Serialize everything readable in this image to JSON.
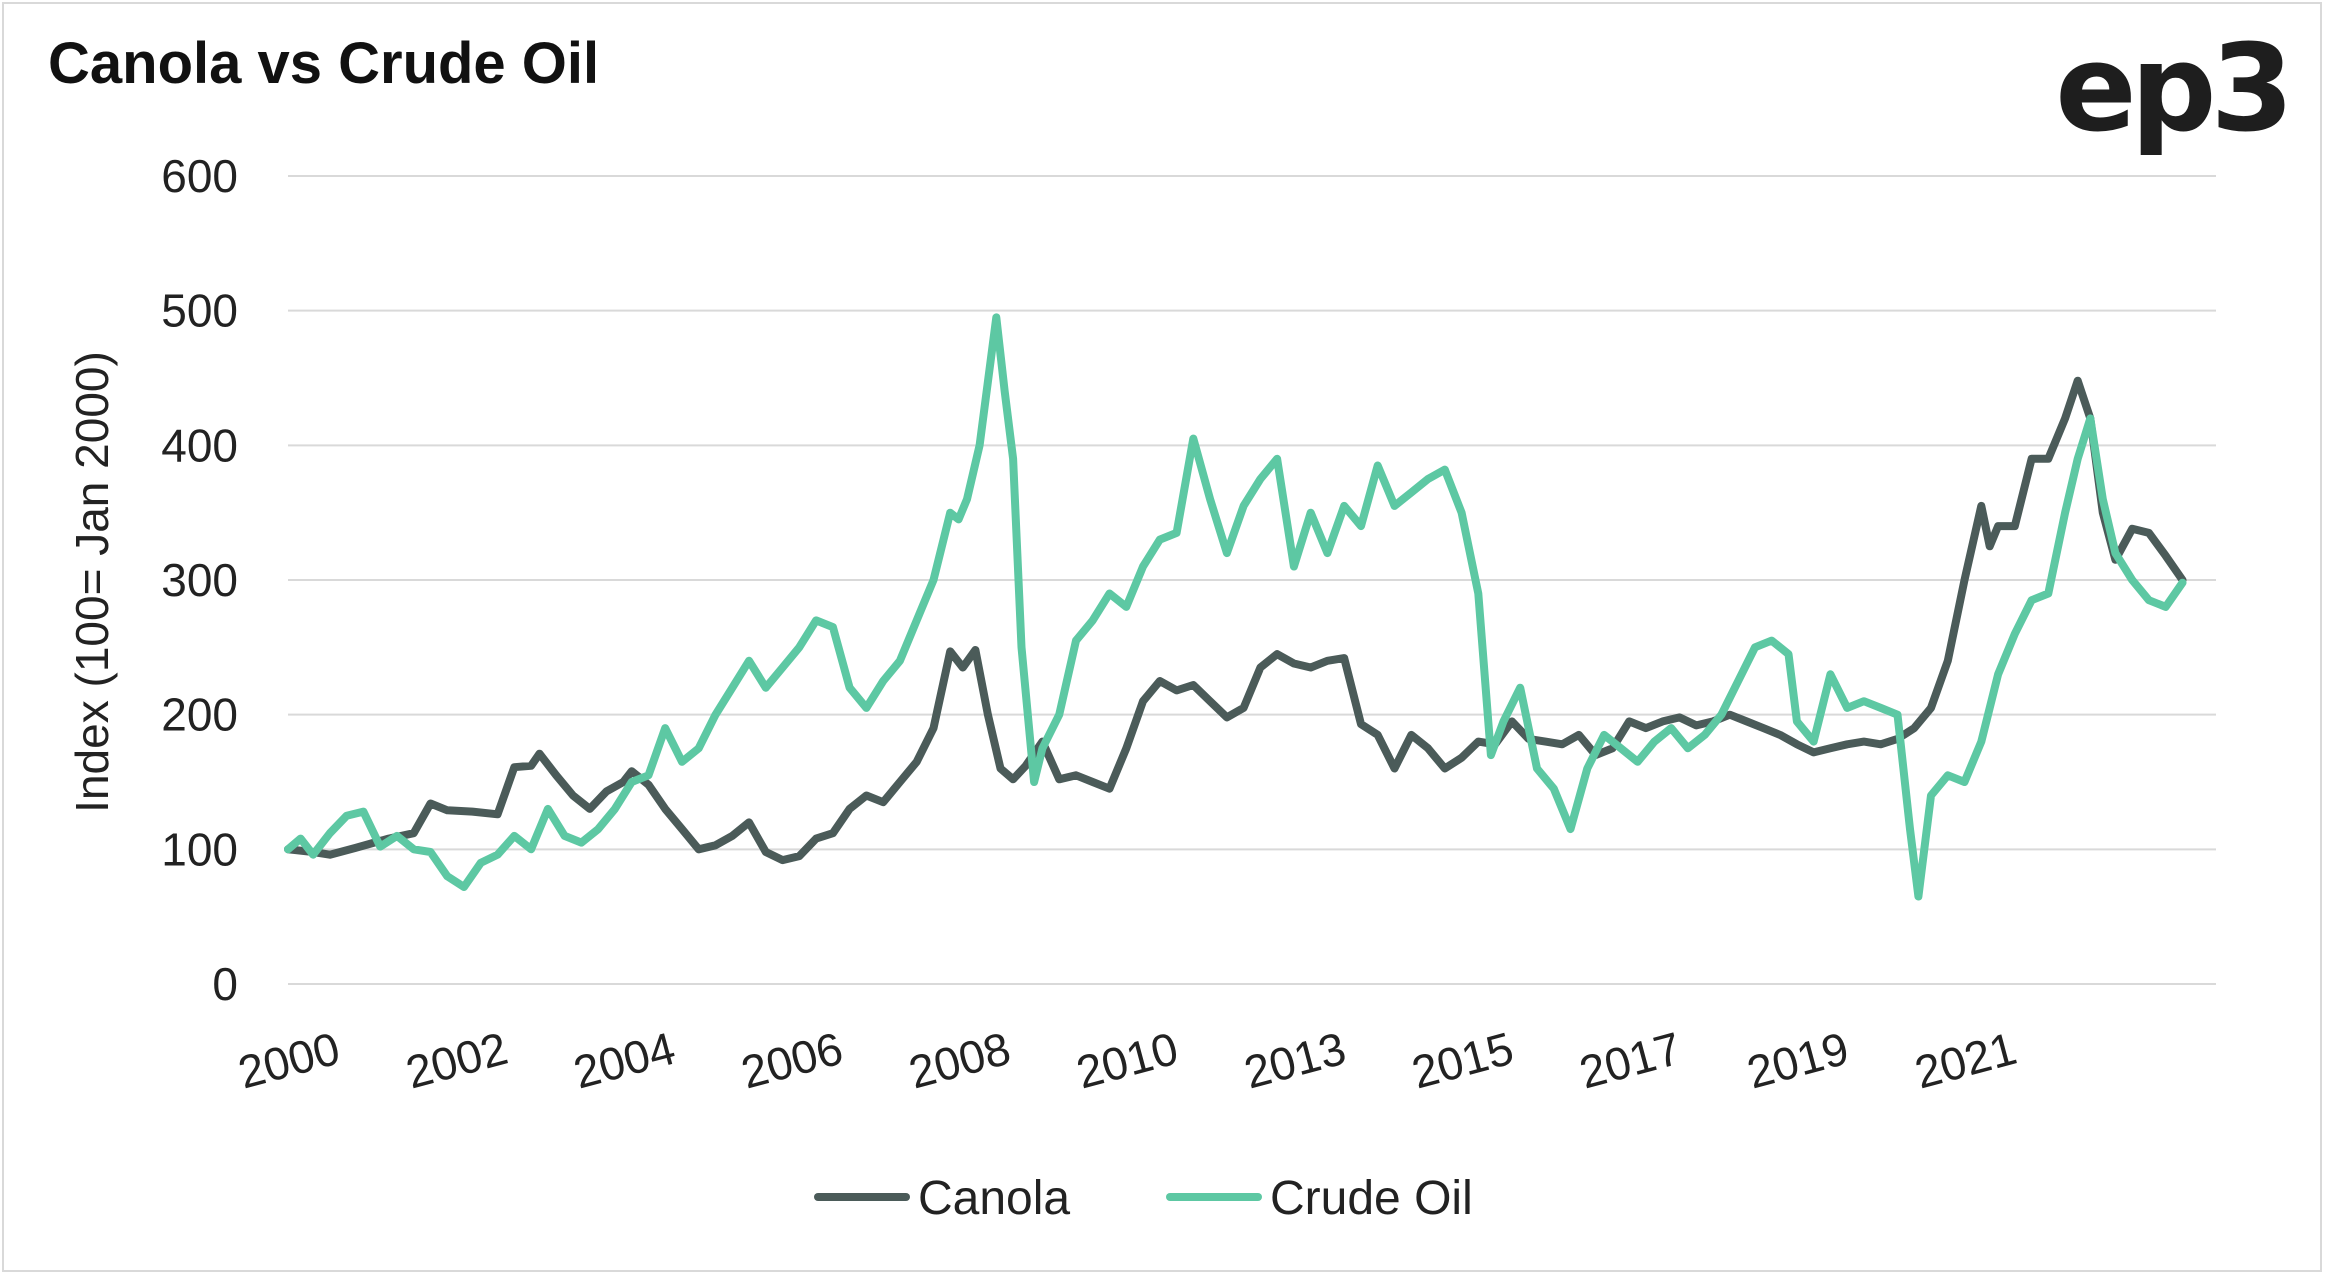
{
  "title": "Canola vs Crude Oil",
  "logo": "ep3",
  "chart_data": {
    "type": "line",
    "title": "Canola vs Crude Oil",
    "xlabel": "",
    "ylabel": "Index (100= Jan 2000)",
    "ylim": [
      0,
      600
    ],
    "yticks": [
      0,
      100,
      200,
      300,
      400,
      500,
      600
    ],
    "xlim": [
      2000.0,
      2023.0
    ],
    "xticks": [
      {
        "label": "2000",
        "x": 2000.0
      },
      {
        "label": "2002",
        "x": 2002.0
      },
      {
        "label": "2004",
        "x": 2004.0
      },
      {
        "label": "2006",
        "x": 2006.0
      },
      {
        "label": "2008",
        "x": 2008.0
      },
      {
        "label": "2010",
        "x": 2010.0
      },
      {
        "label": "2013",
        "x": 2012.0
      },
      {
        "label": "2015",
        "x": 2014.0
      },
      {
        "label": "2017",
        "x": 2016.0
      },
      {
        "label": "2019",
        "x": 2018.0
      },
      {
        "label": "2021",
        "x": 2020.0
      }
    ],
    "grid": true,
    "legend_position": "bottom",
    "series": [
      {
        "name": "Canola",
        "color": "#4b5b59",
        "points": [
          [
            2000.0,
            100
          ],
          [
            2000.3,
            98
          ],
          [
            2000.5,
            96
          ],
          [
            2000.8,
            101
          ],
          [
            2001.2,
            108
          ],
          [
            2001.5,
            112
          ],
          [
            2001.7,
            134
          ],
          [
            2001.9,
            129
          ],
          [
            2002.2,
            128
          ],
          [
            2002.5,
            126
          ],
          [
            2002.7,
            161
          ],
          [
            2002.9,
            162
          ],
          [
            2003.0,
            171
          ],
          [
            2003.2,
            155
          ],
          [
            2003.4,
            140
          ],
          [
            2003.6,
            130
          ],
          [
            2003.8,
            143
          ],
          [
            2004.0,
            150
          ],
          [
            2004.1,
            158
          ],
          [
            2004.3,
            148
          ],
          [
            2004.5,
            130
          ],
          [
            2004.7,
            115
          ],
          [
            2004.9,
            100
          ],
          [
            2005.1,
            103
          ],
          [
            2005.3,
            110
          ],
          [
            2005.5,
            120
          ],
          [
            2005.7,
            98
          ],
          [
            2005.9,
            92
          ],
          [
            2006.1,
            95
          ],
          [
            2006.3,
            108
          ],
          [
            2006.5,
            112
          ],
          [
            2006.7,
            130
          ],
          [
            2006.9,
            140
          ],
          [
            2007.1,
            135
          ],
          [
            2007.3,
            150
          ],
          [
            2007.5,
            165
          ],
          [
            2007.7,
            190
          ],
          [
            2007.9,
            247
          ],
          [
            2008.05,
            235
          ],
          [
            2008.2,
            248
          ],
          [
            2008.35,
            200
          ],
          [
            2008.5,
            160
          ],
          [
            2008.65,
            152
          ],
          [
            2008.8,
            162
          ],
          [
            2009.0,
            180
          ],
          [
            2009.2,
            152
          ],
          [
            2009.4,
            155
          ],
          [
            2009.6,
            150
          ],
          [
            2009.8,
            145
          ],
          [
            2010.0,
            175
          ],
          [
            2010.2,
            210
          ],
          [
            2010.4,
            225
          ],
          [
            2010.6,
            218
          ],
          [
            2010.8,
            222
          ],
          [
            2011.0,
            210
          ],
          [
            2011.2,
            198
          ],
          [
            2011.4,
            205
          ],
          [
            2011.6,
            235
          ],
          [
            2011.8,
            245
          ],
          [
            2012.0,
            238
          ],
          [
            2012.2,
            235
          ],
          [
            2012.4,
            240
          ],
          [
            2012.6,
            242
          ],
          [
            2012.8,
            193
          ],
          [
            2013.0,
            185
          ],
          [
            2013.2,
            160
          ],
          [
            2013.4,
            185
          ],
          [
            2013.6,
            175
          ],
          [
            2013.8,
            160
          ],
          [
            2014.0,
            168
          ],
          [
            2014.2,
            180
          ],
          [
            2014.4,
            178
          ],
          [
            2014.6,
            195
          ],
          [
            2014.8,
            182
          ],
          [
            2015.0,
            180
          ],
          [
            2015.2,
            178
          ],
          [
            2015.4,
            185
          ],
          [
            2015.6,
            170
          ],
          [
            2015.8,
            175
          ],
          [
            2016.0,
            195
          ],
          [
            2016.2,
            190
          ],
          [
            2016.4,
            195
          ],
          [
            2016.6,
            198
          ],
          [
            2016.8,
            192
          ],
          [
            2017.0,
            195
          ],
          [
            2017.2,
            200
          ],
          [
            2017.4,
            195
          ],
          [
            2017.6,
            190
          ],
          [
            2017.8,
            185
          ],
          [
            2018.0,
            178
          ],
          [
            2018.2,
            172
          ],
          [
            2018.4,
            175
          ],
          [
            2018.6,
            178
          ],
          [
            2018.8,
            180
          ],
          [
            2019.0,
            178
          ],
          [
            2019.2,
            182
          ],
          [
            2019.4,
            190
          ],
          [
            2019.6,
            205
          ],
          [
            2019.8,
            240
          ],
          [
            2020.0,
            300
          ],
          [
            2020.2,
            355
          ],
          [
            2020.3,
            325
          ],
          [
            2020.4,
            340
          ],
          [
            2020.6,
            340
          ],
          [
            2020.8,
            390
          ],
          [
            2021.0,
            390
          ],
          [
            2021.2,
            420
          ],
          [
            2021.35,
            448
          ],
          [
            2021.5,
            420
          ],
          [
            2021.65,
            350
          ],
          [
            2021.8,
            315
          ],
          [
            2022.0,
            338
          ],
          [
            2022.2,
            335
          ],
          [
            2022.4,
            318
          ],
          [
            2022.6,
            300
          ]
        ]
      },
      {
        "name": "Crude Oil",
        "color": "#5dc8a3",
        "points": [
          [
            2000.0,
            100
          ],
          [
            2000.15,
            108
          ],
          [
            2000.3,
            96
          ],
          [
            2000.5,
            112
          ],
          [
            2000.7,
            125
          ],
          [
            2000.9,
            128
          ],
          [
            2001.1,
            102
          ],
          [
            2001.3,
            110
          ],
          [
            2001.5,
            100
          ],
          [
            2001.7,
            98
          ],
          [
            2001.9,
            80
          ],
          [
            2002.1,
            72
          ],
          [
            2002.3,
            90
          ],
          [
            2002.5,
            96
          ],
          [
            2002.7,
            110
          ],
          [
            2002.9,
            100
          ],
          [
            2003.1,
            130
          ],
          [
            2003.3,
            110
          ],
          [
            2003.5,
            105
          ],
          [
            2003.7,
            115
          ],
          [
            2003.9,
            130
          ],
          [
            2004.1,
            150
          ],
          [
            2004.3,
            155
          ],
          [
            2004.5,
            190
          ],
          [
            2004.7,
            165
          ],
          [
            2004.9,
            175
          ],
          [
            2005.1,
            200
          ],
          [
            2005.3,
            220
          ],
          [
            2005.5,
            240
          ],
          [
            2005.7,
            220
          ],
          [
            2005.9,
            235
          ],
          [
            2006.1,
            250
          ],
          [
            2006.3,
            270
          ],
          [
            2006.5,
            265
          ],
          [
            2006.7,
            220
          ],
          [
            2006.9,
            205
          ],
          [
            2007.1,
            225
          ],
          [
            2007.3,
            240
          ],
          [
            2007.5,
            270
          ],
          [
            2007.7,
            300
          ],
          [
            2007.9,
            350
          ],
          [
            2008.0,
            345
          ],
          [
            2008.1,
            360
          ],
          [
            2008.25,
            400
          ],
          [
            2008.45,
            495
          ],
          [
            2008.55,
            440
          ],
          [
            2008.65,
            390
          ],
          [
            2008.75,
            250
          ],
          [
            2008.9,
            150
          ],
          [
            2009.0,
            175
          ],
          [
            2009.2,
            200
          ],
          [
            2009.4,
            255
          ],
          [
            2009.6,
            270
          ],
          [
            2009.8,
            290
          ],
          [
            2010.0,
            280
          ],
          [
            2010.2,
            310
          ],
          [
            2010.4,
            330
          ],
          [
            2010.6,
            335
          ],
          [
            2010.8,
            405
          ],
          [
            2011.0,
            360
          ],
          [
            2011.2,
            320
          ],
          [
            2011.4,
            355
          ],
          [
            2011.6,
            375
          ],
          [
            2011.8,
            390
          ],
          [
            2012.0,
            310
          ],
          [
            2012.2,
            350
          ],
          [
            2012.4,
            320
          ],
          [
            2012.6,
            355
          ],
          [
            2012.8,
            340
          ],
          [
            2013.0,
            385
          ],
          [
            2013.2,
            355
          ],
          [
            2013.4,
            365
          ],
          [
            2013.6,
            375
          ],
          [
            2013.8,
            382
          ],
          [
            2014.0,
            350
          ],
          [
            2014.2,
            290
          ],
          [
            2014.35,
            170
          ],
          [
            2014.5,
            195
          ],
          [
            2014.7,
            220
          ],
          [
            2014.9,
            160
          ],
          [
            2015.1,
            145
          ],
          [
            2015.3,
            115
          ],
          [
            2015.5,
            160
          ],
          [
            2015.7,
            185
          ],
          [
            2015.9,
            175
          ],
          [
            2016.1,
            165
          ],
          [
            2016.3,
            180
          ],
          [
            2016.5,
            190
          ],
          [
            2016.7,
            175
          ],
          [
            2016.9,
            185
          ],
          [
            2017.1,
            200
          ],
          [
            2017.3,
            225
          ],
          [
            2017.5,
            250
          ],
          [
            2017.7,
            255
          ],
          [
            2017.9,
            245
          ],
          [
            2018.0,
            195
          ],
          [
            2018.2,
            180
          ],
          [
            2018.4,
            230
          ],
          [
            2018.6,
            205
          ],
          [
            2018.8,
            210
          ],
          [
            2019.0,
            205
          ],
          [
            2019.2,
            200
          ],
          [
            2019.35,
            115
          ],
          [
            2019.45,
            65
          ],
          [
            2019.6,
            140
          ],
          [
            2019.8,
            155
          ],
          [
            2020.0,
            150
          ],
          [
            2020.2,
            180
          ],
          [
            2020.4,
            230
          ],
          [
            2020.6,
            260
          ],
          [
            2020.8,
            285
          ],
          [
            2021.0,
            290
          ],
          [
            2021.2,
            350
          ],
          [
            2021.35,
            390
          ],
          [
            2021.5,
            420
          ],
          [
            2021.65,
            360
          ],
          [
            2021.8,
            320
          ],
          [
            2022.0,
            300
          ],
          [
            2022.2,
            285
          ],
          [
            2022.4,
            280
          ],
          [
            2022.6,
            298
          ]
        ]
      }
    ]
  }
}
